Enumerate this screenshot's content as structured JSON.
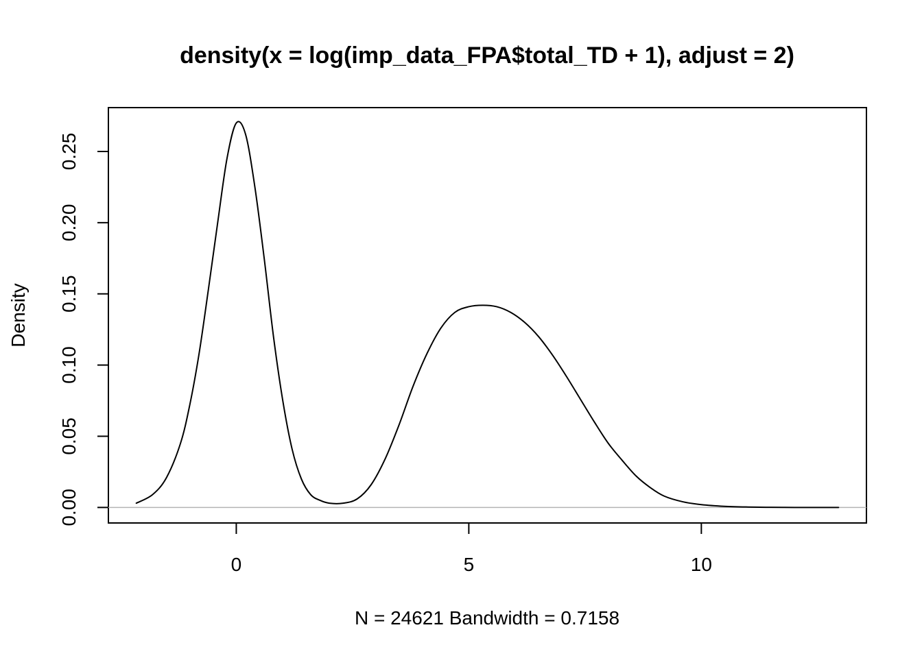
{
  "chart_data": {
    "type": "line",
    "title": "density(x = log(imp_data_FPA$total_TD + 1), adjust = 2)",
    "xlabel": "N = 24621   Bandwidth = 0.7158",
    "ylabel": "Density",
    "xlim": [
      -2.75,
      13.55
    ],
    "ylim": [
      -0.0109,
      0.2808
    ],
    "x_ticks": [
      0,
      5,
      10
    ],
    "x_tick_labels": [
      "0",
      "5",
      "10"
    ],
    "y_ticks": [
      0.0,
      0.05,
      0.1,
      0.15,
      0.2,
      0.25
    ],
    "y_tick_labels": [
      "0.00",
      "0.05",
      "0.10",
      "0.15",
      "0.20",
      "0.25"
    ],
    "baseline": 0,
    "baseline_color": "#b3b3b3",
    "line_color": "#000000",
    "grid": false,
    "series": [
      {
        "x": [
          -2.15,
          -1.8,
          -1.5,
          -1.2,
          -1.0,
          -0.8,
          -0.6,
          -0.4,
          -0.2,
          0.0,
          0.2,
          0.4,
          0.6,
          0.8,
          1.0,
          1.2,
          1.4,
          1.6,
          1.8,
          2.0,
          2.3,
          2.6,
          2.9,
          3.2,
          3.5,
          3.8,
          4.1,
          4.4,
          4.7,
          5.0,
          5.3,
          5.6,
          5.9,
          6.2,
          6.5,
          6.8,
          7.1,
          7.4,
          7.7,
          8.0,
          8.3,
          8.6,
          8.9,
          9.2,
          9.6,
          10.0,
          10.5,
          11.0,
          11.5,
          12.0,
          12.5,
          12.95
        ],
        "y": [
          0.003,
          0.009,
          0.021,
          0.045,
          0.072,
          0.108,
          0.153,
          0.2,
          0.245,
          0.27,
          0.262,
          0.225,
          0.175,
          0.12,
          0.075,
          0.041,
          0.02,
          0.009,
          0.005,
          0.003,
          0.003,
          0.006,
          0.016,
          0.034,
          0.058,
          0.085,
          0.108,
          0.126,
          0.137,
          0.141,
          0.142,
          0.141,
          0.137,
          0.13,
          0.12,
          0.107,
          0.092,
          0.076,
          0.06,
          0.045,
          0.033,
          0.022,
          0.014,
          0.008,
          0.004,
          0.002,
          0.0008,
          0.0003,
          0.0001,
          0.0,
          0.0,
          0.0
        ]
      }
    ]
  }
}
